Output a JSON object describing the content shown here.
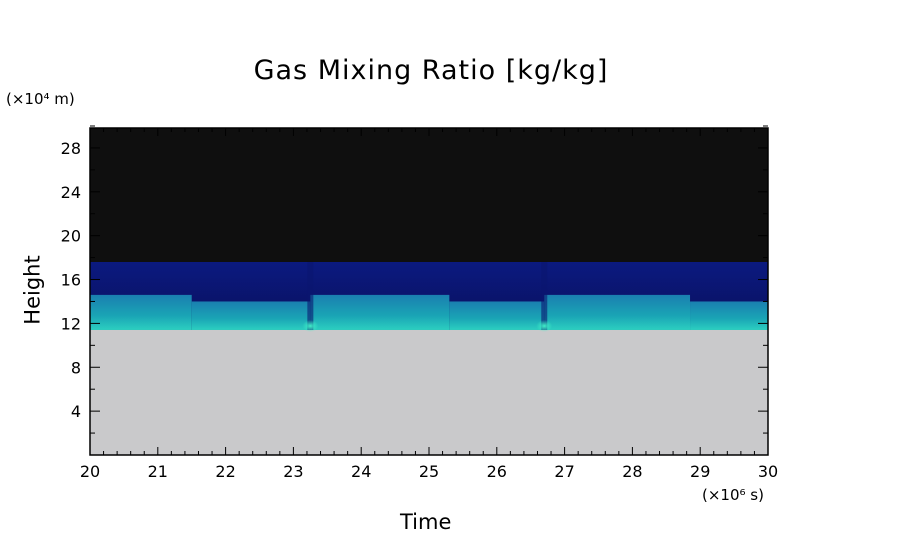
{
  "chart_data": {
    "type": "heatmap",
    "title": "Gas Mixing Ratio [kg/kg]",
    "xlabel": "Time",
    "ylabel": "Height",
    "x_unit": "(×10⁶ s)",
    "y_unit": "(×10⁴ m)",
    "xlim": [
      20,
      30
    ],
    "ylim": [
      0,
      30
    ],
    "x_ticks": [
      "20",
      "21",
      "22",
      "23",
      "24",
      "25",
      "26",
      "27",
      "28",
      "29",
      "30"
    ],
    "y_ticks": [
      "4",
      "8",
      "12",
      "16",
      "20",
      "24",
      "28"
    ],
    "layers": {
      "upper_blue_top": 17.6,
      "cyan_bottom": 11.4,
      "segments": [
        {
          "t0": 20.0,
          "t1": 21.5,
          "cyan_top": 14.6
        },
        {
          "t0": 21.5,
          "t1": 23.25,
          "cyan_top": 14.0
        },
        {
          "t0": 23.25,
          "t1": 25.3,
          "cyan_top": 14.6
        },
        {
          "t0": 25.3,
          "t1": 26.7,
          "cyan_top": 14.0
        },
        {
          "t0": 26.7,
          "t1": 28.85,
          "cyan_top": 14.6
        },
        {
          "t0": 28.85,
          "t1": 30.0,
          "cyan_top": 14.0
        }
      ],
      "bright_spots_time": [
        23.25,
        26.7
      ]
    },
    "colors": {
      "background": "#0f0f0f",
      "upper": "#0b1468",
      "mid": "#1a8fb0",
      "bright": "#40f0c8",
      "lower": "#c9c9cb"
    }
  }
}
